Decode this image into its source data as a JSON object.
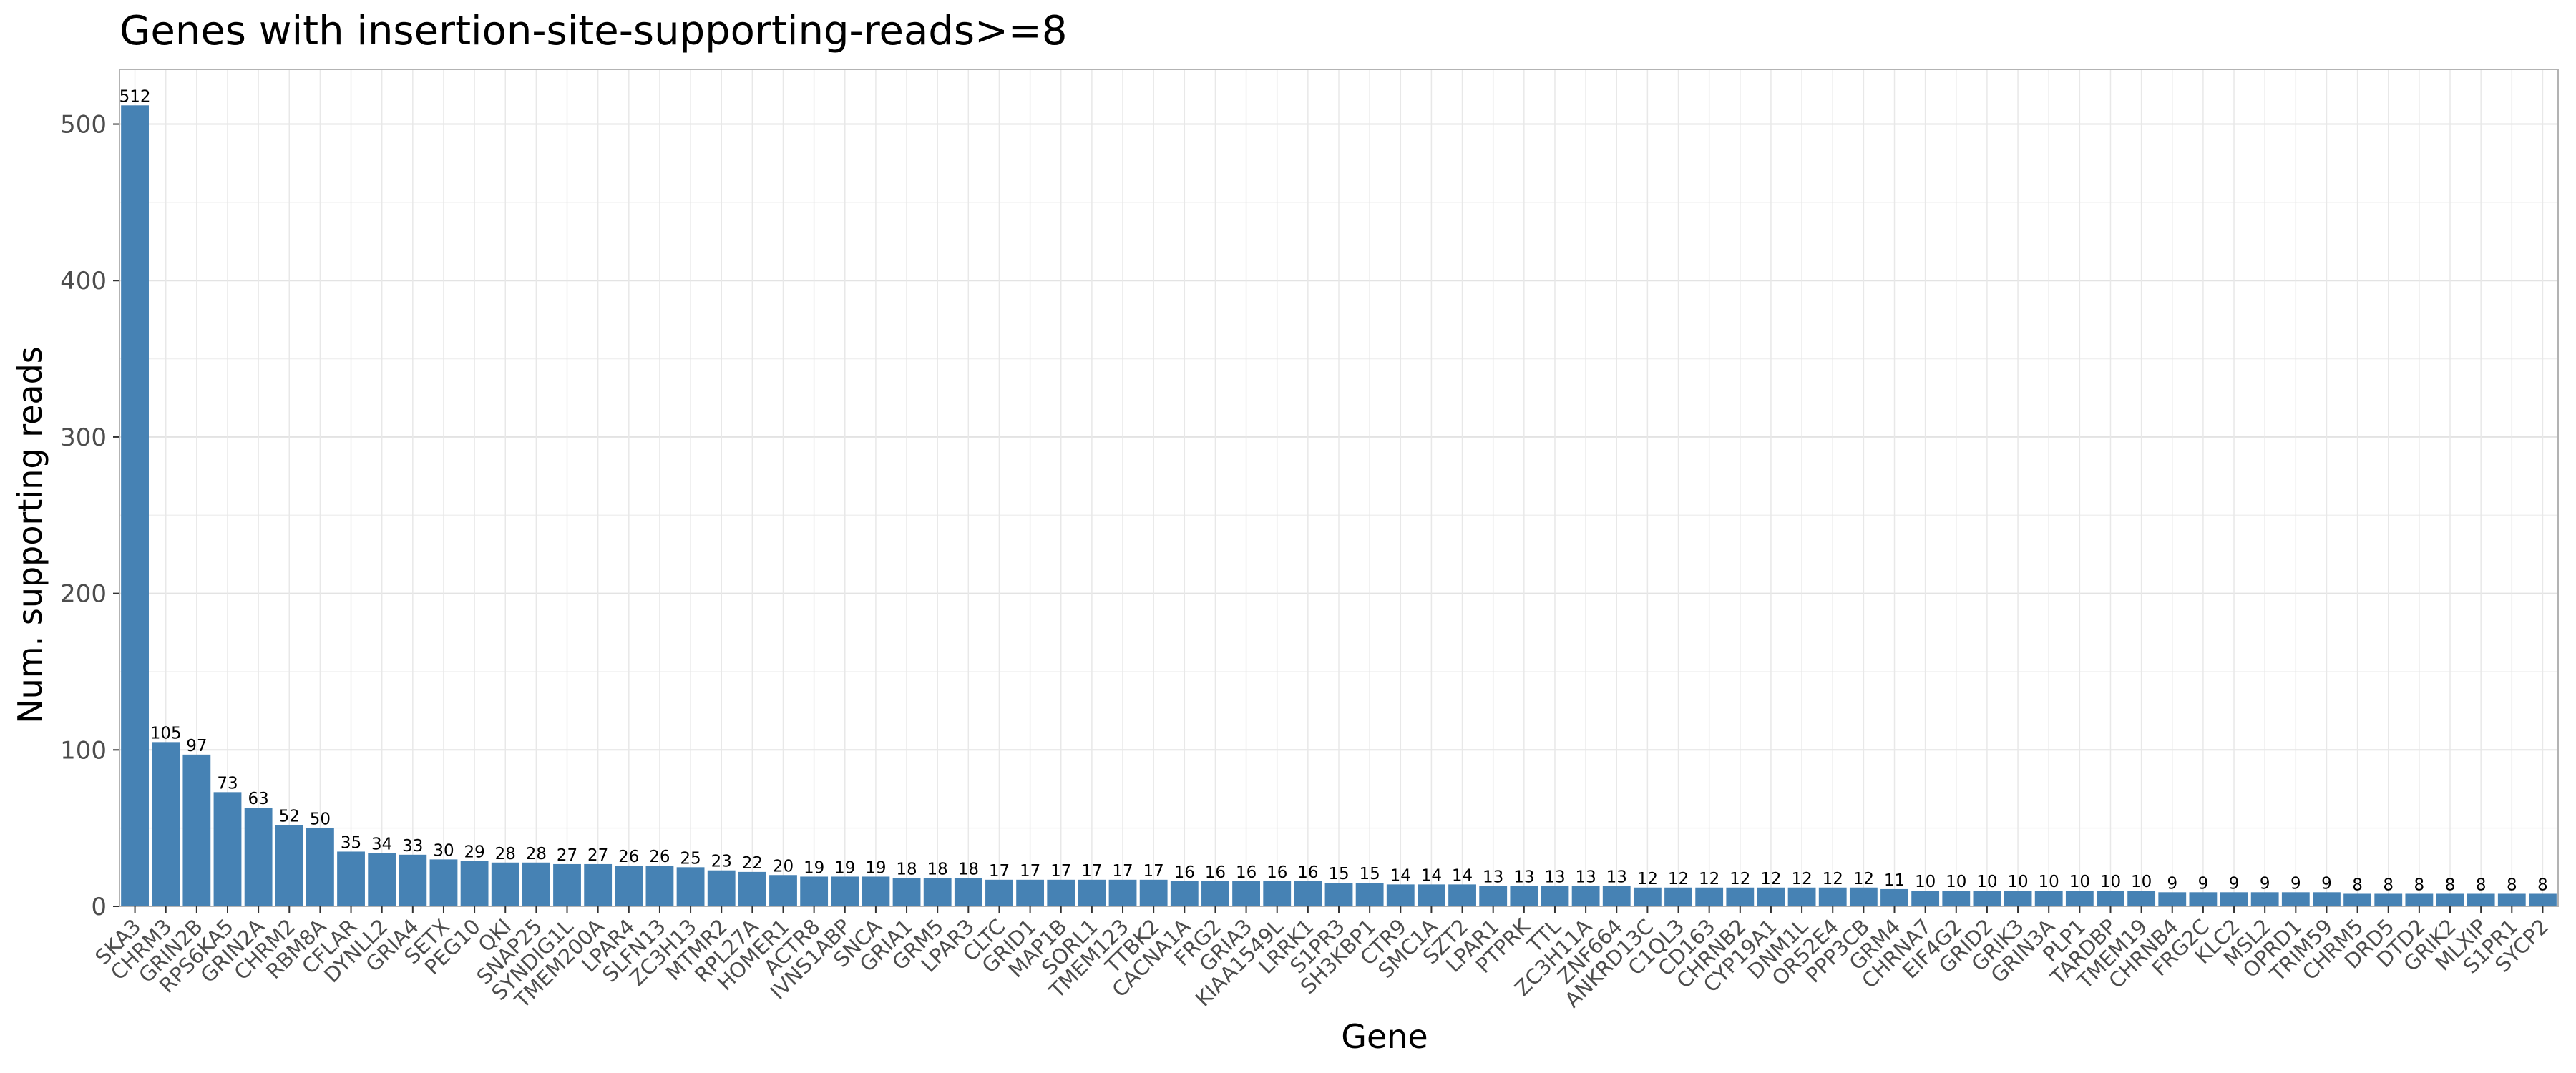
{
  "chart_data": {
    "type": "bar",
    "title": "Genes with insertion-site-supporting-reads>=8",
    "xlabel": "Gene",
    "ylabel": "Num. supporting reads",
    "ylim": [
      0,
      535
    ],
    "yticks": [
      0,
      100,
      200,
      300,
      400,
      500
    ],
    "grid": true,
    "bar_color": "#4682B4",
    "categories": [
      "SKA3",
      "CHRM3",
      "GRIN2B",
      "RPS6KA5",
      "GRIN2A",
      "CHRM2",
      "RBM8A",
      "CFLAR",
      "DYNLL2",
      "GRIA4",
      "SETX",
      "PEG10",
      "QKI",
      "SNAP25",
      "SYNDIG1L",
      "TMEM200A",
      "LPAR4",
      "SLFN13",
      "ZC3H13",
      "MTMR2",
      "RPL27A",
      "HOMER1",
      "ACTR8",
      "IVNS1ABP",
      "SNCA",
      "GRIA1",
      "GRM5",
      "LPAR3",
      "CLTC",
      "GRID1",
      "MAP1B",
      "SORL1",
      "TMEM123",
      "TTBK2",
      "CACNA1A",
      "FRG2",
      "GRIA3",
      "KIAA1549L",
      "LRRK1",
      "S1PR3",
      "SH3KBP1",
      "CTR9",
      "SMC1A",
      "SZT2",
      "LPAR1",
      "PTPRK",
      "TTL",
      "ZC3H11A",
      "ZNF664",
      "ANKRD13C",
      "C1QL3",
      "CD163",
      "CHRNB2",
      "CYP19A1",
      "DNM1L",
      "OR52E4",
      "PPP3CB",
      "GRM4",
      "CHRNA7",
      "EIF4G2",
      "GRID2",
      "GRIK3",
      "GRIN3A",
      "PLP1",
      "TARDBP",
      "TMEM19",
      "CHRNB4",
      "FRG2C",
      "KLC2",
      "MSL2",
      "OPRD1",
      "TRIM59",
      "CHRM5",
      "DRD5",
      "DTD2",
      "GRIK2",
      "MLXIP",
      "S1PR1",
      "SYCP2"
    ],
    "values": [
      512,
      105,
      97,
      73,
      63,
      52,
      50,
      35,
      34,
      33,
      30,
      29,
      28,
      28,
      27,
      27,
      26,
      26,
      25,
      23,
      22,
      20,
      19,
      19,
      19,
      18,
      18,
      18,
      17,
      17,
      17,
      17,
      17,
      17,
      16,
      16,
      16,
      16,
      16,
      15,
      15,
      14,
      14,
      14,
      13,
      13,
      13,
      13,
      13,
      12,
      12,
      12,
      12,
      12,
      12,
      12,
      12,
      11,
      10,
      10,
      10,
      10,
      10,
      10,
      10,
      10,
      9,
      9,
      9,
      9,
      9,
      9,
      8,
      8,
      8,
      8,
      8,
      8,
      8
    ]
  }
}
